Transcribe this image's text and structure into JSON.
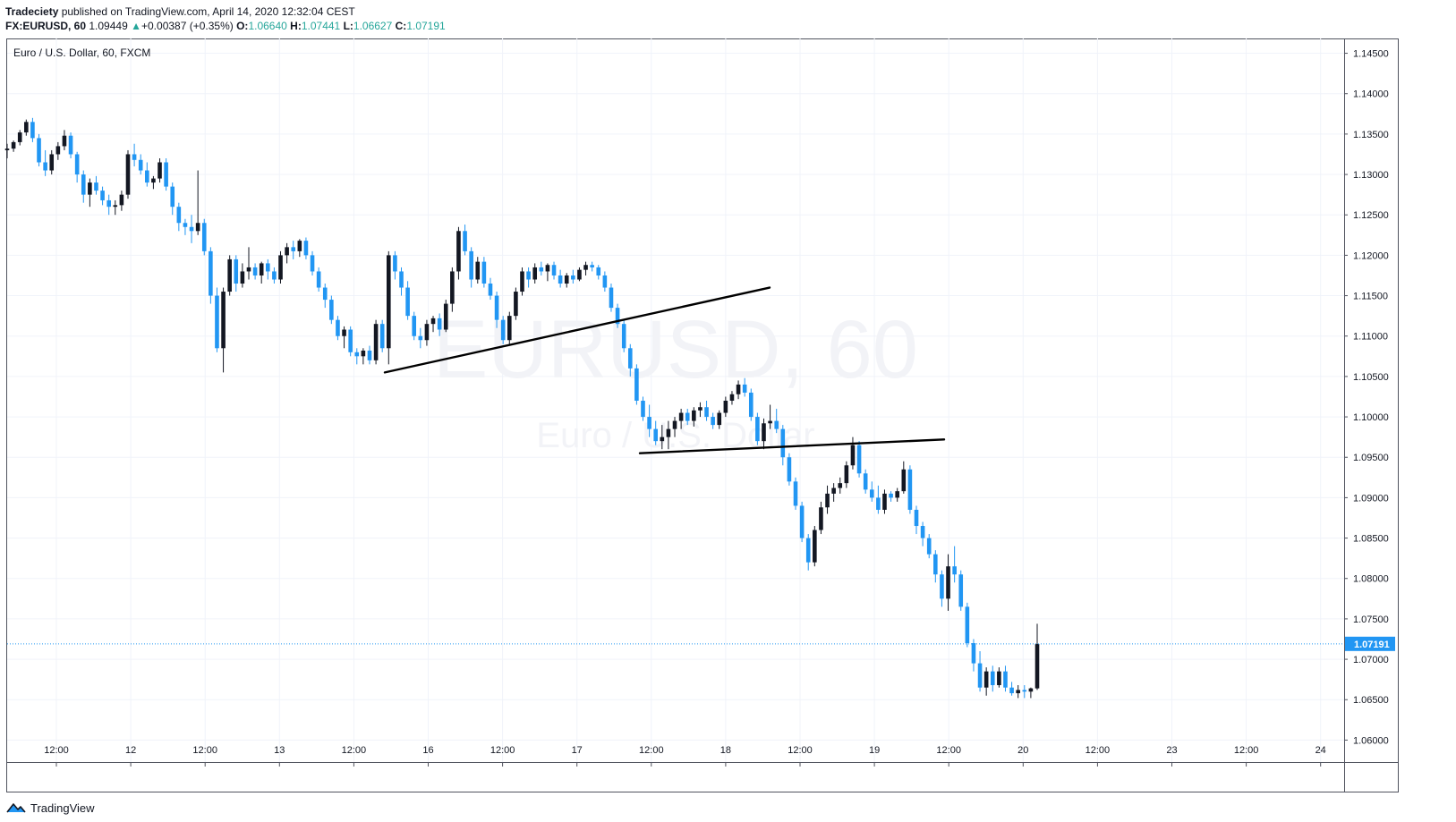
{
  "header": {
    "author": "Tradeciety",
    "published_text": " published on TradingView.com, April 14, 2020 12:32:04 CEST",
    "symbol": "FX:EURUSD, 60",
    "last": "1.09449",
    "change_arrow": "▲",
    "change": "+0.00387 (+0.35%)",
    "o_label": "O:",
    "o_value": "1.06640",
    "h_label": "H:",
    "h_value": "1.07441",
    "l_label": "L:",
    "l_value": "1.06627",
    "c_label": "C:",
    "c_value": "1.07191"
  },
  "pane_legend": "Euro / U.S. Dollar, 60, FXCM",
  "watermark": {
    "line1": "EURUSD, 60",
    "line2": "Euro / U.S. Dollar"
  },
  "brand": "TradingView",
  "colors": {
    "bull": "#131722",
    "bear": "#2196f3",
    "price_line": "#2196f3",
    "grid": "#f0f3fa"
  },
  "chart_data": {
    "type": "candlestick",
    "title": "Euro / U.S. Dollar, 60, FXCM",
    "ylim": [
      1.0575,
      1.1465
    ],
    "y_ticks": [
      "1.14500",
      "1.14000",
      "1.13500",
      "1.13000",
      "1.12500",
      "1.12000",
      "1.11500",
      "1.11000",
      "1.10500",
      "1.10000",
      "1.09500",
      "1.09000",
      "1.08500",
      "1.08000",
      "1.07500",
      "1.07000",
      "1.06500",
      "1.06000"
    ],
    "x_ticks": [
      "12:00",
      "12",
      "12:00",
      "13",
      "12:00",
      "16",
      "12:00",
      "17",
      "12:00",
      "18",
      "12:00",
      "19",
      "12:00",
      "20",
      "12:00",
      "23",
      "12:00",
      "24"
    ],
    "last_price": "1.07191",
    "trendlines": [
      {
        "from": [
          0,
          1.1055
        ],
        "to": [
          1,
          1.116
        ]
      },
      {
        "from": [
          0,
          1.0955
        ],
        "to": [
          1,
          1.0972
        ]
      }
    ],
    "candles": [
      [
        1.133,
        1.1338,
        1.132,
        1.1332
      ],
      [
        1.1332,
        1.1342,
        1.1328,
        1.134
      ],
      [
        1.134,
        1.1355,
        1.1336,
        1.1352
      ],
      [
        1.1352,
        1.1368,
        1.1348,
        1.1365
      ],
      [
        1.1365,
        1.137,
        1.134,
        1.1345
      ],
      [
        1.1345,
        1.135,
        1.131,
        1.1315
      ],
      [
        1.1315,
        1.133,
        1.1298,
        1.1305
      ],
      [
        1.1305,
        1.133,
        1.13,
        1.1325
      ],
      [
        1.1325,
        1.134,
        1.1318,
        1.1335
      ],
      [
        1.1335,
        1.1355,
        1.133,
        1.1348
      ],
      [
        1.1348,
        1.1352,
        1.132,
        1.1325
      ],
      [
        1.1325,
        1.1328,
        1.129,
        1.13
      ],
      [
        1.13,
        1.1305,
        1.1265,
        1.1275
      ],
      [
        1.1275,
        1.1295,
        1.126,
        1.129
      ],
      [
        1.129,
        1.1298,
        1.1275,
        1.128
      ],
      [
        1.128,
        1.1285,
        1.1262,
        1.1268
      ],
      [
        1.1268,
        1.1275,
        1.125,
        1.126
      ],
      [
        1.126,
        1.1268,
        1.125,
        1.1262
      ],
      [
        1.1262,
        1.128,
        1.1255,
        1.1275
      ],
      [
        1.1275,
        1.133,
        1.127,
        1.1325
      ],
      [
        1.1325,
        1.1338,
        1.131,
        1.1318
      ],
      [
        1.1318,
        1.1325,
        1.13,
        1.1305
      ],
      [
        1.1305,
        1.1315,
        1.1285,
        1.129
      ],
      [
        1.129,
        1.1298,
        1.1282,
        1.1295
      ],
      [
        1.1295,
        1.132,
        1.129,
        1.1315
      ],
      [
        1.1315,
        1.132,
        1.128,
        1.1285
      ],
      [
        1.1285,
        1.129,
        1.125,
        1.126
      ],
      [
        1.126,
        1.1265,
        1.123,
        1.124
      ],
      [
        1.124,
        1.1245,
        1.1225,
        1.1235
      ],
      [
        1.1235,
        1.125,
        1.1215,
        1.123
      ],
      [
        1.123,
        1.1305,
        1.1225,
        1.124
      ],
      [
        1.124,
        1.1245,
        1.12,
        1.1205
      ],
      [
        1.1205,
        1.121,
        1.114,
        1.115
      ],
      [
        1.115,
        1.116,
        1.108,
        1.1085
      ],
      [
        1.1085,
        1.116,
        1.1055,
        1.1155
      ],
      [
        1.1155,
        1.12,
        1.115,
        1.1195
      ],
      [
        1.1195,
        1.12,
        1.1155,
        1.1165
      ],
      [
        1.1165,
        1.119,
        1.116,
        1.118
      ],
      [
        1.118,
        1.121,
        1.117,
        1.1185
      ],
      [
        1.1185,
        1.119,
        1.117,
        1.1175
      ],
      [
        1.1175,
        1.1192,
        1.1165,
        1.119
      ],
      [
        1.119,
        1.1195,
        1.117,
        1.118
      ],
      [
        1.118,
        1.1185,
        1.1165,
        1.117
      ],
      [
        1.117,
        1.1205,
        1.1165,
        1.12
      ],
      [
        1.12,
        1.1215,
        1.119,
        1.121
      ],
      [
        1.121,
        1.1218,
        1.1195,
        1.1205
      ],
      [
        1.1205,
        1.122,
        1.1198,
        1.1218
      ],
      [
        1.1218,
        1.1222,
        1.1195,
        1.12
      ],
      [
        1.12,
        1.1205,
        1.1175,
        1.118
      ],
      [
        1.118,
        1.1185,
        1.1155,
        1.116
      ],
      [
        1.116,
        1.1165,
        1.1135,
        1.1145
      ],
      [
        1.1145,
        1.115,
        1.1115,
        1.112
      ],
      [
        1.112,
        1.1125,
        1.1095,
        1.11
      ],
      [
        1.11,
        1.1112,
        1.1085,
        1.1108
      ],
      [
        1.1108,
        1.1112,
        1.1075,
        1.108
      ],
      [
        1.108,
        1.1085,
        1.1065,
        1.1075
      ],
      [
        1.1075,
        1.1085,
        1.1065,
        1.1082
      ],
      [
        1.1082,
        1.1088,
        1.1065,
        1.107
      ],
      [
        1.107,
        1.112,
        1.1065,
        1.1115
      ],
      [
        1.1115,
        1.112,
        1.108,
        1.1085
      ],
      [
        1.1085,
        1.1205,
        1.1065,
        1.12
      ],
      [
        1.12,
        1.1205,
        1.117,
        1.118
      ],
      [
        1.118,
        1.1185,
        1.115,
        1.116
      ],
      [
        1.116,
        1.1168,
        1.112,
        1.1125
      ],
      [
        1.1125,
        1.113,
        1.1095,
        1.11
      ],
      [
        1.11,
        1.111,
        1.1085,
        1.1095
      ],
      [
        1.1095,
        1.112,
        1.1088,
        1.1115
      ],
      [
        1.1115,
        1.1125,
        1.1105,
        1.1122
      ],
      [
        1.1122,
        1.1128,
        1.11,
        1.1108
      ],
      [
        1.1108,
        1.1145,
        1.1105,
        1.114
      ],
      [
        1.114,
        1.1185,
        1.113,
        1.118
      ],
      [
        1.118,
        1.1235,
        1.117,
        1.123
      ],
      [
        1.123,
        1.1238,
        1.12,
        1.1205
      ],
      [
        1.1205,
        1.121,
        1.116,
        1.117
      ],
      [
        1.117,
        1.1198,
        1.1165,
        1.1192
      ],
      [
        1.1192,
        1.1198,
        1.116,
        1.1165
      ],
      [
        1.1165,
        1.1172,
        1.1145,
        1.115
      ],
      [
        1.115,
        1.1155,
        1.111,
        1.112
      ],
      [
        1.112,
        1.1125,
        1.109,
        1.1095
      ],
      [
        1.1095,
        1.113,
        1.109,
        1.1125
      ],
      [
        1.1125,
        1.116,
        1.112,
        1.1155
      ],
      [
        1.1155,
        1.1185,
        1.115,
        1.118
      ],
      [
        1.118,
        1.1185,
        1.116,
        1.117
      ],
      [
        1.117,
        1.119,
        1.1165,
        1.1185
      ],
      [
        1.1185,
        1.1192,
        1.1175,
        1.118
      ],
      [
        1.118,
        1.119,
        1.1168,
        1.1188
      ],
      [
        1.1188,
        1.1192,
        1.117,
        1.1175
      ],
      [
        1.1175,
        1.1182,
        1.116,
        1.1165
      ],
      [
        1.1165,
        1.1178,
        1.116,
        1.1175
      ],
      [
        1.1175,
        1.1182,
        1.1165,
        1.117
      ],
      [
        1.117,
        1.1185,
        1.1168,
        1.1182
      ],
      [
        1.1182,
        1.1192,
        1.1175,
        1.1188
      ],
      [
        1.1188,
        1.1192,
        1.118,
        1.1185
      ],
      [
        1.1185,
        1.1188,
        1.117,
        1.1175
      ],
      [
        1.1175,
        1.118,
        1.1155,
        1.116
      ],
      [
        1.116,
        1.1165,
        1.113,
        1.1135
      ],
      [
        1.1135,
        1.114,
        1.111,
        1.1115
      ],
      [
        1.1115,
        1.112,
        1.108,
        1.1085
      ],
      [
        1.1085,
        1.109,
        1.105,
        1.106
      ],
      [
        1.106,
        1.1065,
        1.1015,
        1.102
      ],
      [
        1.102,
        1.1025,
        1.0995,
        1.1
      ],
      [
        1.1,
        1.1015,
        1.0975,
        1.0985
      ],
      [
        1.0985,
        1.0995,
        1.0965,
        1.097
      ],
      [
        1.097,
        1.099,
        1.096,
        1.0975
      ],
      [
        1.0975,
        1.0995,
        1.096,
        1.0985
      ],
      [
        1.0985,
        1.1,
        1.0975,
        1.0995
      ],
      [
        1.0995,
        1.101,
        1.0985,
        1.1005
      ],
      [
        1.1005,
        1.101,
        1.099,
        1.0995
      ],
      [
        1.0995,
        1.1012,
        1.0988,
        1.1008
      ],
      [
        1.1008,
        1.1018,
        1.1,
        1.1012
      ],
      [
        1.1012,
        1.102,
        1.0995,
        1.1
      ],
      [
        1.1,
        1.1005,
        1.0985,
        1.099
      ],
      [
        1.099,
        1.1008,
        1.0985,
        1.1005
      ],
      [
        1.1005,
        1.1025,
        1.1,
        1.102
      ],
      [
        1.102,
        1.1032,
        1.1015,
        1.1028
      ],
      [
        1.1028,
        1.1045,
        1.1022,
        1.104
      ],
      [
        1.104,
        1.1048,
        1.1025,
        1.103
      ],
      [
        1.103,
        1.1035,
        1.0995,
        1.1
      ],
      [
        1.1,
        1.1005,
        1.0965,
        1.097
      ],
      [
        1.097,
        1.0998,
        1.096,
        1.0992
      ],
      [
        1.0992,
        1.1015,
        1.0985,
        1.0995
      ],
      [
        1.0995,
        1.101,
        1.098,
        1.0985
      ],
      [
        1.0985,
        1.099,
        1.094,
        1.095
      ],
      [
        1.095,
        1.0955,
        1.0915,
        1.092
      ],
      [
        1.092,
        1.0925,
        1.0885,
        1.089
      ],
      [
        1.089,
        1.0895,
        1.0845,
        1.085
      ],
      [
        1.085,
        1.0855,
        1.081,
        1.082
      ],
      [
        1.082,
        1.0865,
        1.0815,
        1.086
      ],
      [
        1.086,
        1.0895,
        1.0855,
        1.0888
      ],
      [
        1.0888,
        1.0915,
        1.088,
        1.0905
      ],
      [
        1.0905,
        1.0918,
        1.0895,
        1.0912
      ],
      [
        1.0912,
        1.0925,
        1.0905,
        1.0918
      ],
      [
        1.0918,
        1.0945,
        1.0912,
        1.094
      ],
      [
        1.094,
        1.0975,
        1.0935,
        1.0965
      ],
      [
        1.0965,
        1.097,
        1.0925,
        1.093
      ],
      [
        1.093,
        1.0935,
        1.0905,
        1.091
      ],
      [
        1.091,
        1.092,
        1.0895,
        1.09
      ],
      [
        1.09,
        1.0915,
        1.088,
        1.0885
      ],
      [
        1.0885,
        1.091,
        1.088,
        1.0905
      ],
      [
        1.0905,
        1.0908,
        1.0895,
        1.09
      ],
      [
        1.09,
        1.0912,
        1.0895,
        1.0908
      ],
      [
        1.0908,
        1.0945,
        1.0905,
        1.0935
      ],
      [
        1.0935,
        1.094,
        1.088,
        1.0885
      ],
      [
        1.0885,
        1.089,
        1.0855,
        1.0865
      ],
      [
        1.0865,
        1.087,
        1.084,
        1.085
      ],
      [
        1.085,
        1.0855,
        1.0825,
        1.083
      ],
      [
        1.083,
        1.0835,
        1.0795,
        1.0805
      ],
      [
        1.0805,
        1.081,
        1.0765,
        1.0775
      ],
      [
        1.0775,
        1.083,
        1.076,
        1.0815
      ],
      [
        1.0815,
        1.084,
        1.0795,
        1.0805
      ],
      [
        1.0805,
        1.081,
        1.076,
        1.0765
      ],
      [
        1.0765,
        1.077,
        1.0715,
        1.072
      ],
      [
        1.072,
        1.0725,
        1.0685,
        1.0695
      ],
      [
        1.0695,
        1.071,
        1.066,
        1.0665
      ],
      [
        1.0665,
        1.069,
        1.0655,
        1.0685
      ],
      [
        1.0685,
        1.0692,
        1.066,
        1.0668
      ],
      [
        1.0668,
        1.069,
        1.0665,
        1.0685
      ],
      [
        1.0685,
        1.0692,
        1.066,
        1.0665
      ],
      [
        1.0665,
        1.0672,
        1.0655,
        1.0658
      ],
      [
        1.0658,
        1.0668,
        1.0652,
        1.0662
      ],
      [
        1.0662,
        1.0668,
        1.0652,
        1.066
      ],
      [
        1.066,
        1.0665,
        1.0652,
        1.0664
      ],
      [
        1.0664,
        1.0744,
        1.0662,
        1.0719
      ]
    ]
  }
}
